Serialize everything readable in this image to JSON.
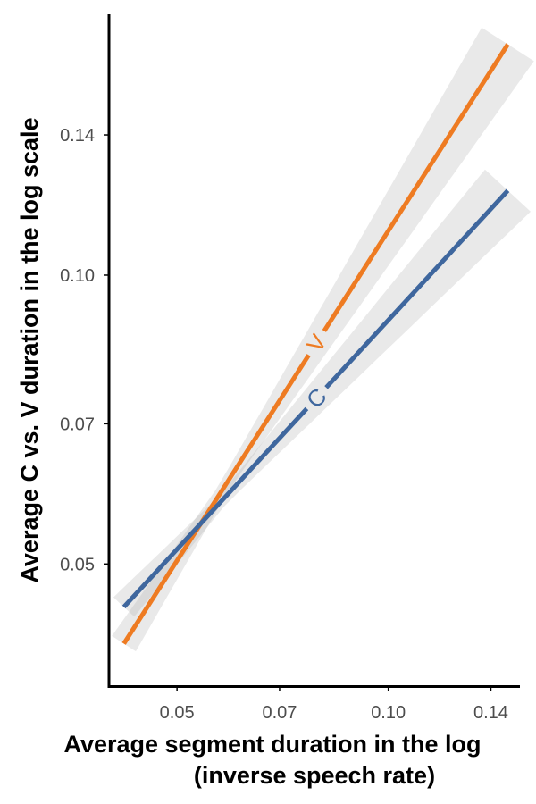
{
  "chart_data": {
    "type": "line",
    "xlabel": "Average segment duration in the log",
    "xlabel_line2": "(inverse speech rate)",
    "ylabel": "Average C vs. V duration in the log scale",
    "x_scale": "log",
    "y_scale": "log",
    "xlim": [
      0.04,
      0.154
    ],
    "ylim": [
      0.0373,
      0.187
    ],
    "x_ticks": [
      0.05,
      0.07,
      0.1,
      0.14
    ],
    "x_tick_labels": [
      "0.05",
      "0.07",
      "0.10",
      "0.14"
    ],
    "y_ticks": [
      0.05,
      0.07,
      0.1,
      0.14
    ],
    "y_tick_labels": [
      "0.05",
      "0.07",
      "0.10",
      "0.14"
    ],
    "grid": false,
    "legend": "none",
    "confidence_band": true,
    "series": [
      {
        "name": "V",
        "color": "#EE7B22",
        "x": [
          0.042,
          0.148
        ],
        "y": [
          0.0413,
          0.174
        ],
        "label_at": 0.079
      },
      {
        "name": "C",
        "color": "#3F679E",
        "x": [
          0.042,
          0.148
        ],
        "y": [
          0.0451,
          0.1225
        ],
        "label_at": 0.079
      }
    ]
  }
}
